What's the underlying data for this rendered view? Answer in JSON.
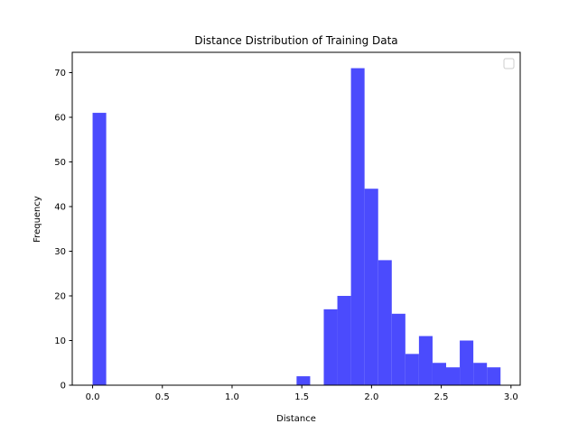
{
  "chart_data": {
    "type": "bar",
    "title": "Distance Distribution of Training Data",
    "xlabel": "Distance",
    "ylabel": "Frequency",
    "xlim": [
      -0.146,
      3.066
    ],
    "ylim": [
      0,
      74.55
    ],
    "x_ticks": [
      0.0,
      0.5,
      1.0,
      1.5,
      2.0,
      2.5,
      3.0
    ],
    "x_tick_labels": [
      "0.0",
      "0.5",
      "1.0",
      "1.5",
      "2.0",
      "2.5",
      "3.0"
    ],
    "y_ticks": [
      0,
      10,
      20,
      30,
      40,
      50,
      60,
      70
    ],
    "y_tick_labels": [
      "0",
      "10",
      "20",
      "30",
      "40",
      "50",
      "60",
      "70"
    ],
    "bar_color": "#4b4bfd",
    "grid": false,
    "legend": {
      "placement": "top-right",
      "entries": []
    },
    "bin_edges": [
      0.0,
      0.0975,
      0.195,
      0.2925,
      0.39,
      0.4875,
      0.585,
      0.6825,
      0.78,
      0.8775,
      0.975,
      1.0725,
      1.17,
      1.2675,
      1.365,
      1.4625,
      1.56,
      1.6575,
      1.755,
      1.8525,
      1.95,
      2.0475,
      2.145,
      2.2425,
      2.34,
      2.4375,
      2.535,
      2.6325,
      2.73,
      2.8275,
      2.925
    ],
    "values": [
      61,
      0,
      0,
      0,
      0,
      0,
      0,
      0,
      0,
      0,
      0,
      0,
      0,
      0,
      0,
      2,
      0,
      17,
      20,
      71,
      44,
      28,
      16,
      7,
      11,
      5,
      4,
      10,
      5,
      4
    ]
  }
}
